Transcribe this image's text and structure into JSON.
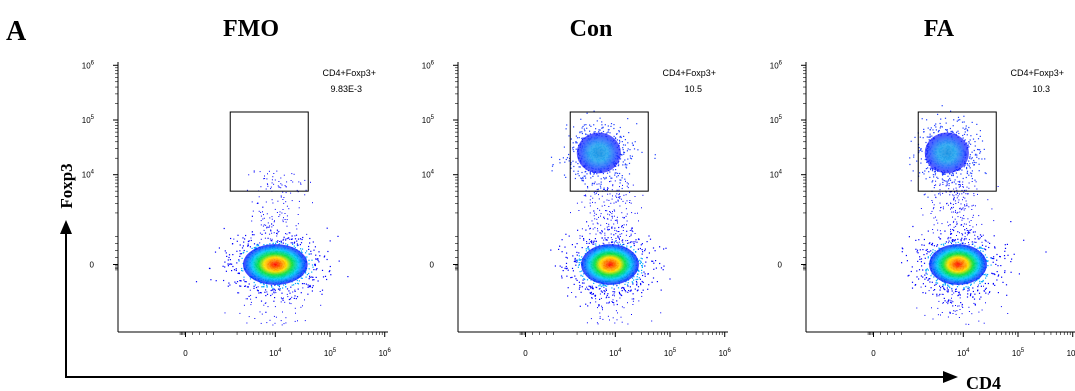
{
  "figure": {
    "panel_letter": "A",
    "y_axis_label": "Foxp3",
    "x_axis_label": "CD4"
  },
  "colors": {
    "density_low": "#0000ff",
    "density_mid_low": "#00c8ff",
    "density_mid": "#00e040",
    "density_mid_high": "#ffe000",
    "density_high": "#ff0000",
    "gate": "#000000",
    "axis": "#000000"
  },
  "chart_data": [
    {
      "type": "scatter",
      "title": "FMO",
      "x_scale": "biexponential",
      "y_scale": "biexponential",
      "x_ticks": [
        "0",
        "10^4",
        "10^5",
        "10^6"
      ],
      "y_ticks": [
        "0",
        "10^4",
        "10^5",
        "10^6"
      ],
      "populations": [
        {
          "name": "CD4+Foxp3-",
          "center_cd4": 10000,
          "center_foxp3": 0
        }
      ],
      "gate": {
        "name": "CD4+Foxp3+",
        "value": "9.83E-3",
        "cd4_range": [
          1500,
          40000
        ],
        "foxp3_range": [
          5000,
          140000
        ]
      }
    },
    {
      "type": "scatter",
      "title": "Con",
      "x_scale": "biexponential",
      "y_scale": "biexponential",
      "x_ticks": [
        "0",
        "10^4",
        "10^5",
        "10^6"
      ],
      "y_ticks": [
        "0",
        "10^4",
        "10^5",
        "10^6"
      ],
      "populations": [
        {
          "name": "CD4+Foxp3-",
          "center_cd4": 8000,
          "center_foxp3": 0
        },
        {
          "name": "CD4+Foxp3+",
          "center_cd4": 5000,
          "center_foxp3": 25000
        }
      ],
      "gate": {
        "name": "CD4+Foxp3+",
        "value": "10.5",
        "cd4_range": [
          1500,
          40000
        ],
        "foxp3_range": [
          5000,
          140000
        ]
      }
    },
    {
      "type": "scatter",
      "title": "FA",
      "x_scale": "biexponential",
      "y_scale": "biexponential",
      "x_ticks": [
        "0",
        "10^4",
        "10^5",
        "10^6"
      ],
      "y_ticks": [
        "0",
        "10^4",
        "10^5",
        "10^6"
      ],
      "populations": [
        {
          "name": "CD4+Foxp3-",
          "center_cd4": 8000,
          "center_foxp3": 0
        },
        {
          "name": "CD4+Foxp3+",
          "center_cd4": 5000,
          "center_foxp3": 25000
        }
      ],
      "gate": {
        "name": "CD4+Foxp3+",
        "value": "10.3",
        "cd4_range": [
          1500,
          40000
        ],
        "foxp3_range": [
          5000,
          140000
        ]
      }
    }
  ]
}
